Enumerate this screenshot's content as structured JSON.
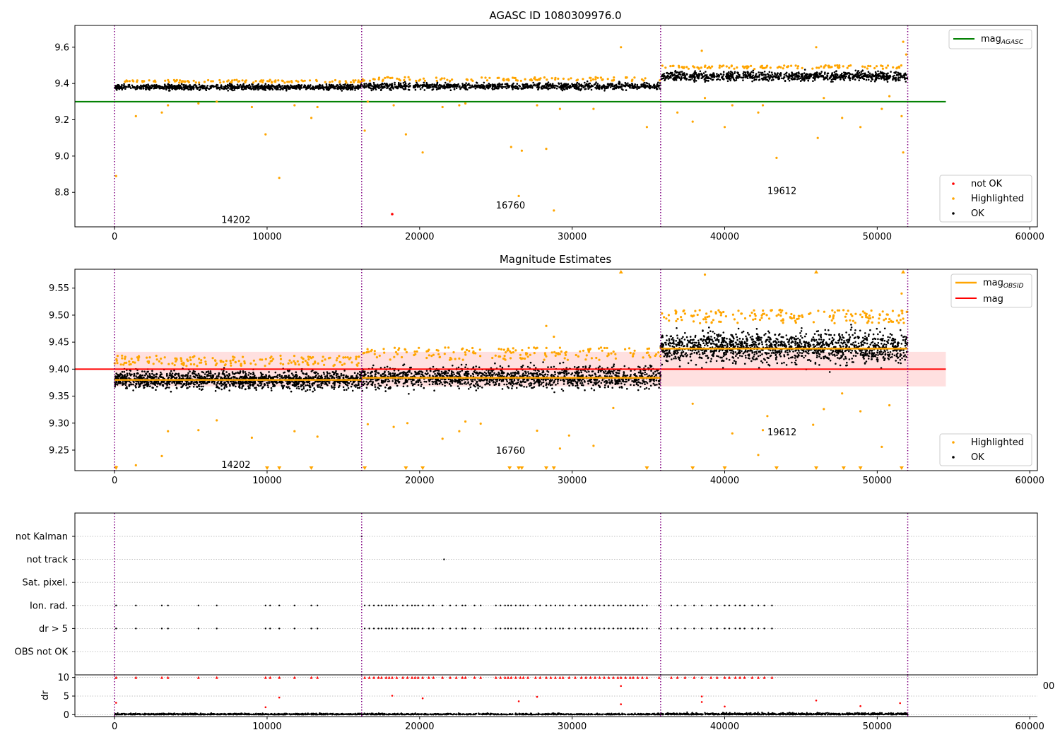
{
  "figure": {
    "stray_tick_label": "00"
  },
  "chart_data": [
    {
      "id": "agasc",
      "type": "scatter",
      "title": "AGASC ID 1080309976.0",
      "xlim": [
        -2600,
        60500
      ],
      "ylim": [
        8.61,
        9.72
      ],
      "xticks": [
        0,
        10000,
        20000,
        30000,
        40000,
        50000,
        60000
      ],
      "xtick_labels": [
        "0",
        "10000",
        "20000",
        "30000",
        "40000",
        "50000",
        "60000"
      ],
      "yticks": [
        8.8,
        9.0,
        9.2,
        9.4,
        9.6
      ],
      "ytick_labels": [
        "8.8",
        "9.0",
        "9.2",
        "9.4",
        "9.6"
      ],
      "vlines": [
        0,
        16200,
        35800,
        52000
      ],
      "hline": {
        "label": "mag",
        "sub": "AGASC",
        "y": 9.3,
        "x": [
          -2600,
          54500
        ],
        "color": "#008000"
      },
      "segments": [
        {
          "obsid": "14202",
          "x": [
            0,
            16200
          ],
          "center": 9.38,
          "spread": 0.015,
          "hl": 0.04
        },
        {
          "obsid": "16760",
          "x": [
            16200,
            35800
          ],
          "center": 9.385,
          "spread": 0.018,
          "hl": 0.05
        },
        {
          "obsid": "19612",
          "x": [
            35800,
            52000
          ],
          "center": 9.44,
          "spread": 0.025,
          "hl": 0.06
        }
      ],
      "obsid_labels": [
        {
          "text": "14202",
          "x": 7000,
          "y": 8.65
        },
        {
          "text": "16760",
          "x": 25000,
          "y": 8.73
        },
        {
          "text": "19612",
          "x": 42800,
          "y": 8.81
        }
      ],
      "outliers": [
        [
          100,
          8.89
        ],
        [
          1400,
          9.22
        ],
        [
          3100,
          9.24
        ],
        [
          3500,
          9.28
        ],
        [
          5500,
          9.29
        ],
        [
          6700,
          9.3
        ],
        [
          9000,
          9.27
        ],
        [
          9900,
          9.12
        ],
        [
          10800,
          8.88
        ],
        [
          11800,
          9.28
        ],
        [
          12900,
          9.21
        ],
        [
          13300,
          9.27
        ],
        [
          16400,
          9.14
        ],
        [
          16600,
          9.3
        ],
        [
          18300,
          9.28
        ],
        [
          19100,
          9.12
        ],
        [
          20200,
          9.02
        ],
        [
          21500,
          9.27
        ],
        [
          22600,
          9.28
        ],
        [
          23000,
          9.29
        ],
        [
          26000,
          9.05
        ],
        [
          26500,
          8.78
        ],
        [
          26700,
          9.03
        ],
        [
          27700,
          9.28
        ],
        [
          28300,
          9.04
        ],
        [
          28800,
          8.7
        ],
        [
          29200,
          9.26
        ],
        [
          31400,
          9.26
        ],
        [
          33200,
          9.6
        ],
        [
          34900,
          9.16
        ],
        [
          36900,
          9.24
        ],
        [
          37900,
          9.19
        ],
        [
          38500,
          9.58
        ],
        [
          38700,
          9.32
        ],
        [
          40000,
          9.16
        ],
        [
          40500,
          9.28
        ],
        [
          42200,
          9.24
        ],
        [
          42500,
          9.28
        ],
        [
          43400,
          8.99
        ],
        [
          46000,
          9.6
        ],
        [
          46100,
          9.1
        ],
        [
          46500,
          9.32
        ],
        [
          47700,
          9.21
        ],
        [
          48900,
          9.16
        ],
        [
          50300,
          9.26
        ],
        [
          50800,
          9.33
        ],
        [
          51600,
          9.22
        ],
        [
          51700,
          9.02
        ],
        [
          51700,
          9.63
        ],
        [
          51900,
          9.56
        ]
      ],
      "not_ok": [
        [
          18200,
          8.68
        ]
      ],
      "legend": {
        "line_label": "mag",
        "line_sub": "AGASC",
        "scatter": [
          "not OK",
          "Highlighted",
          "OK"
        ]
      }
    },
    {
      "id": "estimates",
      "type": "scatter",
      "title": "Magnitude Estimates",
      "xlim": [
        -2600,
        60500
      ],
      "ylim": [
        9.212,
        9.585
      ],
      "xticks": [
        0,
        10000,
        20000,
        30000,
        40000,
        50000,
        60000
      ],
      "xtick_labels": [
        "0",
        "10000",
        "20000",
        "30000",
        "40000",
        "50000",
        "60000"
      ],
      "yticks": [
        9.25,
        9.3,
        9.35,
        9.4,
        9.45,
        9.5,
        9.55
      ],
      "ytick_labels": [
        "9.25",
        "9.30",
        "9.35",
        "9.40",
        "9.45",
        "9.50",
        "9.55"
      ],
      "vlines": [
        0,
        16200,
        35800,
        52000
      ],
      "mag": {
        "label": "mag",
        "y": 9.4,
        "band": [
          9.368,
          9.432
        ],
        "x": [
          -2600,
          54500
        ],
        "color": "#ff0000"
      },
      "obsid_mags": [
        {
          "x": [
            0,
            16200
          ],
          "y": 9.38
        },
        {
          "x": [
            16200,
            35800
          ],
          "y": 9.384
        },
        {
          "x": [
            35800,
            52000
          ],
          "y": 9.438
        }
      ],
      "segments": [
        {
          "x": [
            0,
            16200
          ],
          "center": 9.38,
          "spread": 0.016,
          "hl": 0.045
        },
        {
          "x": [
            16200,
            35800
          ],
          "center": 9.385,
          "spread": 0.02,
          "hl": 0.055
        },
        {
          "x": [
            35800,
            52000
          ],
          "center": 9.44,
          "spread": 0.028,
          "hl": 0.07
        }
      ],
      "obsid_labels": [
        {
          "text": "14202",
          "x": 7000,
          "y": 9.224
        },
        {
          "text": "16760",
          "x": 25000,
          "y": 9.25
        },
        {
          "text": "19612",
          "x": 42800,
          "y": 9.284
        }
      ],
      "outliers": [
        [
          100,
          9.219
        ],
        [
          1400,
          9.222
        ],
        [
          3100,
          9.239
        ],
        [
          3500,
          9.285
        ],
        [
          5500,
          9.287
        ],
        [
          6700,
          9.305
        ],
        [
          9000,
          9.273
        ],
        [
          11800,
          9.285
        ],
        [
          13300,
          9.275
        ],
        [
          16600,
          9.298
        ],
        [
          18300,
          9.293
        ],
        [
          19200,
          9.3
        ],
        [
          21500,
          9.271
        ],
        [
          22600,
          9.285
        ],
        [
          23000,
          9.303
        ],
        [
          24000,
          9.299
        ],
        [
          27700,
          9.286
        ],
        [
          28300,
          9.48
        ],
        [
          28800,
          9.46
        ],
        [
          29200,
          9.253
        ],
        [
          29800,
          9.277
        ],
        [
          31400,
          9.258
        ],
        [
          32700,
          9.328
        ],
        [
          37900,
          9.336
        ],
        [
          38700,
          9.575
        ],
        [
          40500,
          9.281
        ],
        [
          42200,
          9.241
        ],
        [
          42500,
          9.287
        ],
        [
          42800,
          9.313
        ],
        [
          45800,
          9.297
        ],
        [
          46500,
          9.326
        ],
        [
          47700,
          9.355
        ],
        [
          48900,
          9.322
        ],
        [
          50300,
          9.256
        ],
        [
          50800,
          9.333
        ],
        [
          51600,
          9.54
        ]
      ],
      "low_markers": [
        100,
        10000,
        10800,
        12900,
        16400,
        19100,
        20200,
        25900,
        26500,
        26700,
        28300,
        28800,
        34900,
        37900,
        40000,
        43400,
        46000,
        47800,
        48900,
        51600
      ],
      "high_markers": [
        33200,
        46000,
        51700
      ],
      "legend": {
        "line_label": "mag",
        "line_sub": "OBSID",
        "line2_label": "mag",
        "scatter": [
          "Highlighted",
          "OK"
        ]
      }
    },
    {
      "id": "flags",
      "type": "scatter",
      "xlim": [
        -2600,
        60500
      ],
      "vlines": [
        0,
        16200,
        35800,
        52000
      ],
      "categories": [
        "not Kalman",
        "not track",
        "Sat. pixel.",
        "Ion. rad.",
        "dr > 5",
        "OBS not OK"
      ],
      "flag_points": {
        "not Kalman": [
          16200
        ],
        "not track": [
          21600
        ],
        "Sat. pixel.": [],
        "Ion. rad.": [
          100,
          1400,
          3100,
          3500,
          5500,
          6700,
          9900,
          10200,
          10800,
          11800,
          12900,
          13300,
          16400,
          16700,
          17000,
          17300,
          17500,
          17800,
          18000,
          18200,
          18500,
          18900,
          19200,
          19500,
          19700,
          19900,
          20200,
          20600,
          20900,
          21500,
          22000,
          22400,
          22800,
          23000,
          23600,
          24000,
          25000,
          25300,
          25600,
          25800,
          26000,
          26300,
          26600,
          26800,
          27100,
          27600,
          27900,
          28300,
          28600,
          28900,
          29200,
          29400,
          29800,
          30200,
          30600,
          30900,
          31200,
          31500,
          31800,
          32100,
          32400,
          32700,
          33000,
          33200,
          33500,
          33800,
          34000,
          34300,
          34600,
          34900,
          35700,
          36500,
          36900,
          37400,
          38000,
          38500,
          39100,
          39500,
          40000,
          40300,
          40700,
          41000,
          41300,
          41800,
          42200,
          42600,
          43100
        ],
        "dr > 5": [
          100,
          1400,
          3100,
          3500,
          5500,
          6700,
          9900,
          10200,
          10800,
          11800,
          12900,
          13300,
          16400,
          16700,
          17000,
          17300,
          17500,
          17800,
          18000,
          18200,
          18500,
          18900,
          19200,
          19500,
          19700,
          19900,
          20200,
          20600,
          20900,
          21500,
          22000,
          22400,
          22800,
          23000,
          23600,
          24000,
          25000,
          25300,
          25600,
          25800,
          26000,
          26300,
          26600,
          26800,
          27100,
          27600,
          27900,
          28300,
          28600,
          28900,
          29200,
          29400,
          29800,
          30200,
          30600,
          30900,
          31200,
          31500,
          31800,
          32100,
          32400,
          32700,
          33000,
          33200,
          33500,
          33800,
          34000,
          34300,
          34600,
          34900,
          35700,
          36500,
          36900,
          37400,
          38000,
          38500,
          39100,
          39500,
          40000,
          40300,
          40700,
          41000,
          41300,
          41800,
          42200,
          42600,
          43100
        ],
        "OBS not OK": []
      }
    },
    {
      "id": "dr",
      "type": "scatter",
      "ylabel": "dr",
      "xlim": [
        -2600,
        60500
      ],
      "ylim": [
        -0.5,
        10.5
      ],
      "xticks": [
        0,
        10000,
        20000,
        30000,
        40000,
        50000,
        60000
      ],
      "xtick_labels": [
        "0",
        "10000",
        "20000",
        "30000",
        "40000",
        "50000",
        "60000"
      ],
      "yticks": [
        0,
        5,
        10
      ],
      "ytick_labels": [
        "0",
        "5",
        "10"
      ],
      "vlines": [
        0,
        16200,
        35800,
        52000
      ],
      "capped_value": 10,
      "spikes": [
        [
          100,
          3.2
        ],
        [
          9900,
          2.0
        ],
        [
          10800,
          4.6
        ],
        [
          18200,
          5.1
        ],
        [
          20200,
          4.4
        ],
        [
          26500,
          3.6
        ],
        [
          27700,
          4.8
        ],
        [
          33200,
          7.7
        ],
        [
          33200,
          2.8
        ],
        [
          38500,
          4.9
        ],
        [
          38500,
          3.4
        ],
        [
          40000,
          2.2
        ],
        [
          46000,
          3.8
        ],
        [
          48900,
          2.3
        ],
        [
          51500,
          3.1
        ]
      ]
    }
  ]
}
